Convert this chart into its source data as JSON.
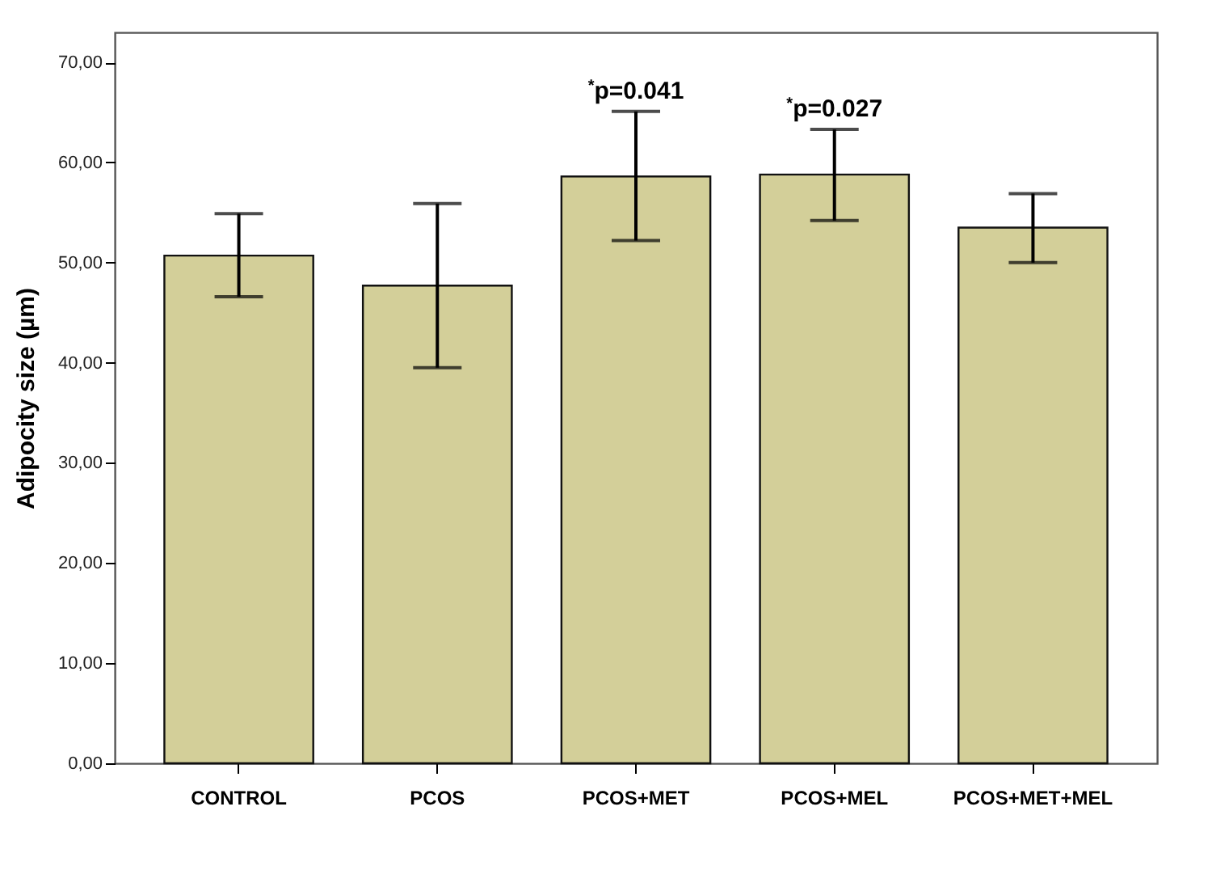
{
  "chart_data": {
    "type": "bar",
    "ylabel": "Adipocity size (µm)",
    "categories": [
      "CONTROL",
      "PCOS",
      "PCOS+MET",
      "PCOS+MEL",
      "PCOS+MET+MEL"
    ],
    "values": [
      50.7,
      47.7,
      58.6,
      58.8,
      53.5
    ],
    "errors": [
      [
        46.6,
        54.9
      ],
      [
        39.5,
        55.9
      ],
      [
        52.2,
        65.1
      ],
      [
        54.2,
        63.3
      ],
      [
        50.0,
        56.9
      ]
    ],
    "color": "#d3cf99",
    "ylim": [
      0,
      73
    ],
    "yticks": [
      {
        "value": 0,
        "label": "0,00"
      },
      {
        "value": 10,
        "label": "10,00"
      },
      {
        "value": 20,
        "label": "20,00"
      },
      {
        "value": 30,
        "label": "30,00"
      },
      {
        "value": 40,
        "label": "40,00"
      },
      {
        "value": 50,
        "label": "50,00"
      },
      {
        "value": 60,
        "label": "60,00"
      },
      {
        "value": 70,
        "label": "70,00"
      }
    ],
    "annotations": [
      {
        "text": "$^{*}$p=0.041",
        "x": "PCOS+MET",
        "y": 65.1
      },
      {
        "text": "$^{*}$p=0.027",
        "x": "PCOS+MEL",
        "y": 63.3
      }
    ],
    "grid": false
  }
}
